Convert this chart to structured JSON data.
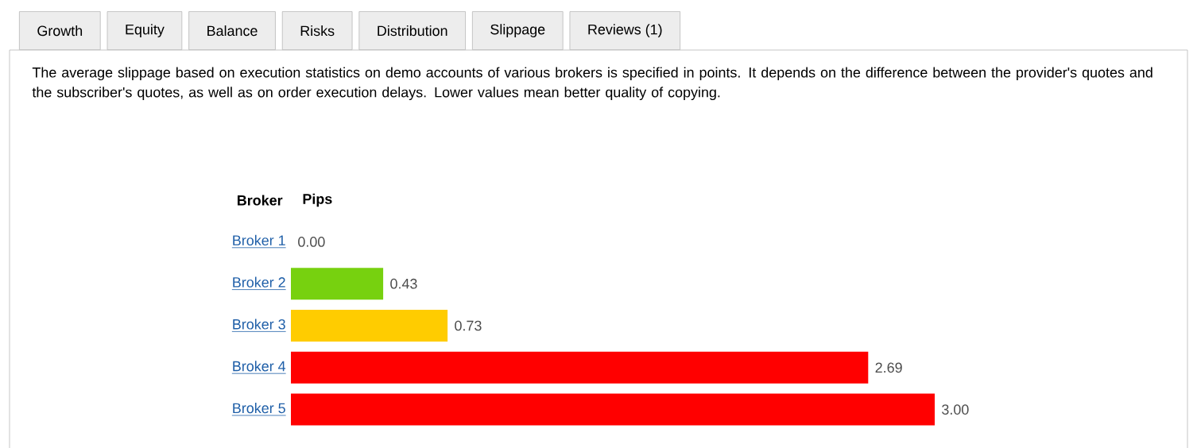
{
  "chart_data": {
    "type": "bar",
    "orientation": "horizontal",
    "subtitle": "The average slippage based on execution statistics on demo accounts of various brokers is specified in points. It depends on the difference between the provider's quotes and the subscriber's quotes, as well as on order execution delays. Lower values mean better quality of copying.",
    "annotations": [
      "Growth",
      "Equity",
      "Balance",
      "Risks",
      "Distribution",
      "Slippage",
      "Reviews (1)"
    ],
    "ylabel": "Broker",
    "xlabel": "Pips",
    "categories": [
      "Broker 1",
      "Broker 2",
      "Broker 3",
      "Broker 4",
      "Broker 5"
    ],
    "values": [
      0,
      0.43,
      0.73,
      2.69,
      3.0
    ],
    "value_labels": [
      "0.00",
      "0.43",
      "0.73",
      "2.69",
      "3.00"
    ],
    "colors": [
      "#ff0000",
      "#77d10f",
      "#ffcc00",
      "#ff0000",
      "#ff0000"
    ]
  }
}
